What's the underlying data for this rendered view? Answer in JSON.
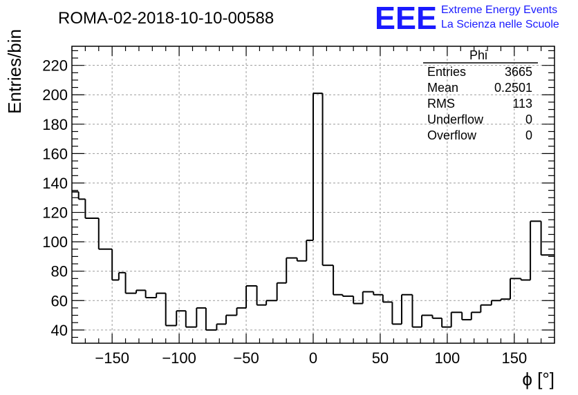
{
  "header": {
    "title": "ROMA-02-2018-10-10-00588",
    "logo": "EEE",
    "logo_line1": "Extreme Energy Events",
    "logo_line2": "La Scienza nelle Scuole",
    "logo_color": "#1a1aff"
  },
  "stats_box": {
    "title": "Phi",
    "rows": [
      {
        "label": "Entries",
        "value": "3665"
      },
      {
        "label": "Mean",
        "value": "0.2501"
      },
      {
        "label": "RMS",
        "value": "113"
      },
      {
        "label": "Underflow",
        "value": "0"
      },
      {
        "label": "Overflow",
        "value": "0"
      }
    ]
  },
  "chart_data": {
    "type": "bar",
    "style": "step histogram",
    "title": "ROMA-02-2018-10-10-00588",
    "xlabel": "ϕ [°]",
    "ylabel": "Entries/bin",
    "xlim": [
      -180,
      180
    ],
    "ylim": [
      31,
      233
    ],
    "bin_width": 10,
    "bin_edges_start": -180,
    "x_ticks": [
      -150,
      -100,
      -50,
      0,
      50,
      100,
      150
    ],
    "x_tick_labels": [
      "−150",
      "−100",
      "−50",
      "0",
      "50",
      "100",
      "150"
    ],
    "y_ticks": [
      40,
      60,
      80,
      100,
      120,
      140,
      160,
      180,
      200,
      220
    ],
    "y_tick_labels": [
      "40",
      "60",
      "80",
      "100",
      "120",
      "140",
      "160",
      "180",
      "200",
      "220"
    ],
    "grid": true,
    "values": [
      134,
      129,
      116,
      95,
      74,
      79,
      65,
      67,
      62,
      65,
      43,
      53,
      42,
      55,
      40,
      44,
      50,
      55,
      70,
      57,
      60,
      72,
      89,
      87,
      101,
      201,
      84,
      64,
      63,
      58,
      66,
      64,
      59,
      44,
      64,
      42,
      50,
      48,
      42,
      52,
      47,
      52,
      57,
      60,
      61,
      75,
      74,
      114,
      91
    ],
    "bins_x_start": [
      -180,
      -175,
      -170,
      -160,
      -150,
      -145,
      -140,
      -132,
      -125,
      -117,
      -110,
      -102,
      -95,
      -87,
      -80,
      -72,
      -65,
      -57,
      -50,
      -42,
      -35,
      -27,
      -20,
      -12,
      -5,
      0,
      7,
      15,
      22,
      30,
      37,
      45,
      52,
      59,
      66,
      74,
      81,
      89,
      96,
      103,
      111,
      118,
      125,
      133,
      140,
      147,
      155,
      162,
      170
    ],
    "line_color": "#000000"
  }
}
